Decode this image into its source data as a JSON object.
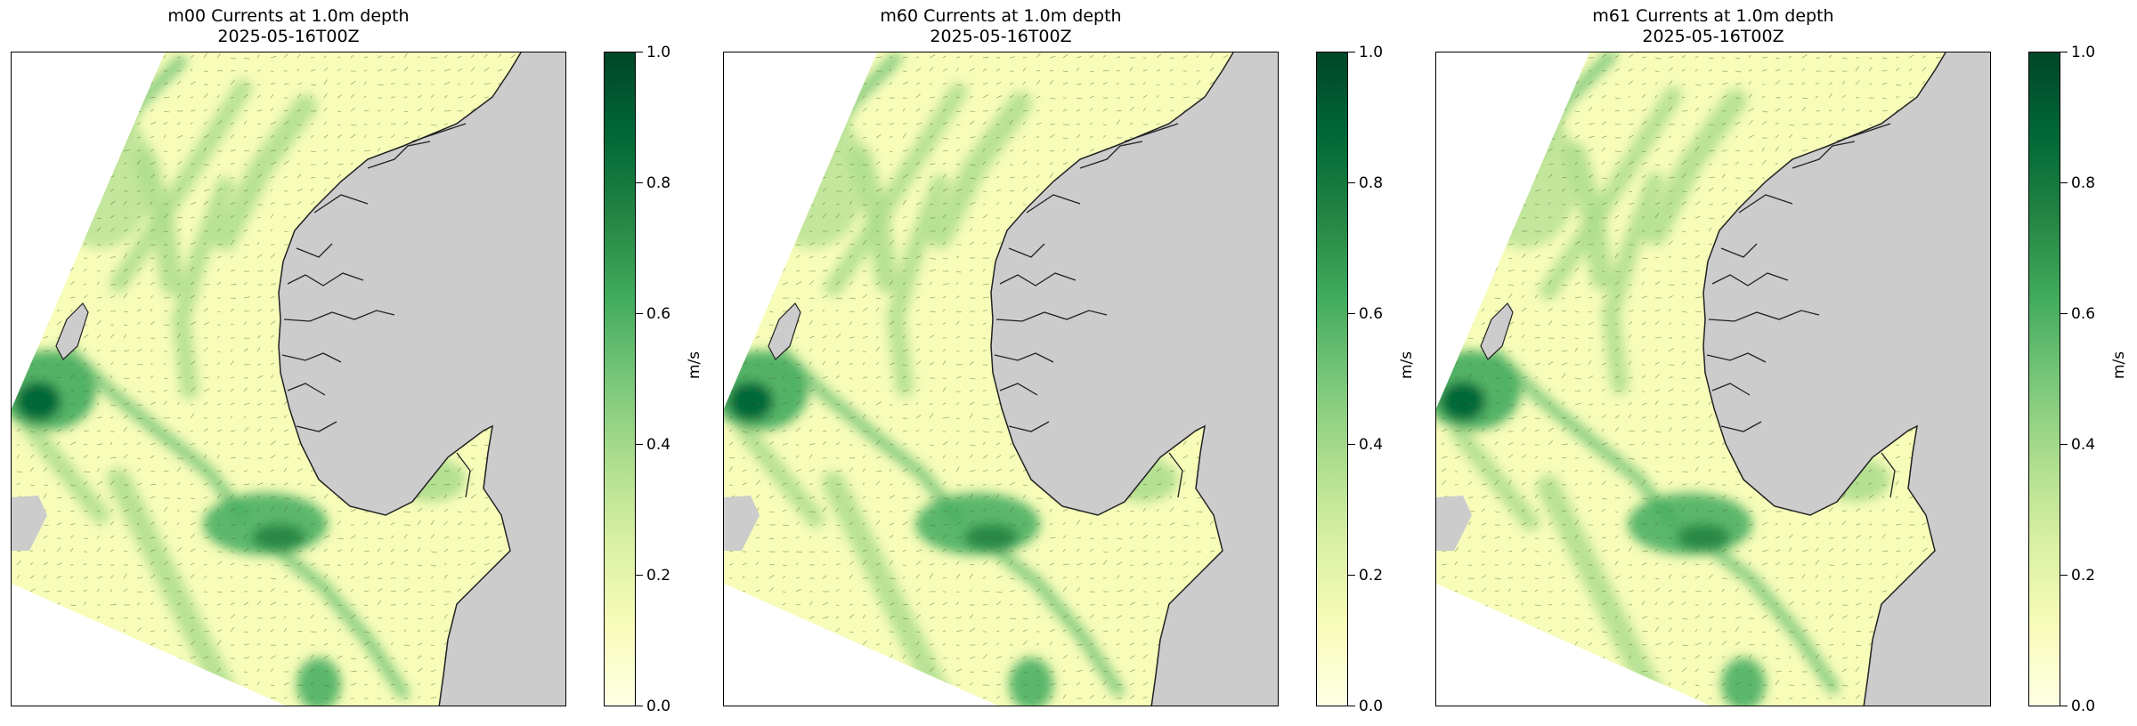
{
  "chart_data": [
    {
      "type": "heatmap",
      "title": "m00 Currents at 1.0m depth",
      "subtitle": "2025-05-16T00Z",
      "colorbar": {
        "label": "m/s",
        "range": [
          0.0,
          1.0
        ],
        "ticks": [
          "0.0",
          "0.2",
          "0.4",
          "0.6",
          "0.8",
          "1.0"
        ],
        "colormap": [
          "#ffffe5",
          "#f7fcb9",
          "#d9f0a3",
          "#addd8e",
          "#78c679",
          "#41ab5d",
          "#238443",
          "#006837",
          "#004529"
        ]
      },
      "grid": false
    },
    {
      "type": "heatmap",
      "title": "m60 Currents at 1.0m depth",
      "subtitle": "2025-05-16T00Z",
      "colorbar": {
        "label": "m/s",
        "range": [
          0.0,
          1.0
        ],
        "ticks": [
          "0.0",
          "0.2",
          "0.4",
          "0.6",
          "0.8",
          "1.0"
        ],
        "colormap": [
          "#ffffe5",
          "#f7fcb9",
          "#d9f0a3",
          "#addd8e",
          "#78c679",
          "#41ab5d",
          "#238443",
          "#006837",
          "#004529"
        ]
      },
      "grid": false
    },
    {
      "type": "heatmap",
      "title": "m61 Currents at 1.0m depth",
      "subtitle": "2025-05-16T00Z",
      "colorbar": {
        "label": "m/s",
        "range": [
          0.0,
          1.0
        ],
        "ticks": [
          "0.0",
          "0.2",
          "0.4",
          "0.6",
          "0.8",
          "1.0"
        ],
        "colormap": [
          "#ffffe5",
          "#f7fcb9",
          "#d9f0a3",
          "#addd8e",
          "#78c679",
          "#41ab5d",
          "#238443",
          "#006837",
          "#004529"
        ]
      },
      "grid": false
    }
  ],
  "colors": {
    "land": "#cccccc",
    "ocean_low": "#f7fcb9",
    "ocean_mid": "#addd8e",
    "ocean_high": "#006837",
    "coastline": "#222222"
  }
}
